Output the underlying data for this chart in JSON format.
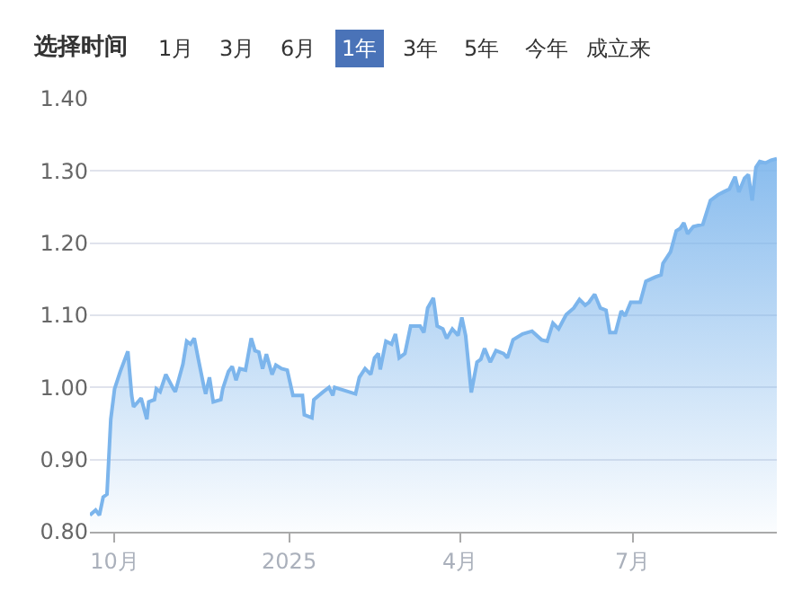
{
  "chart_data": {
    "type": "area",
    "title": "选择时间",
    "annotations": [
      "1月",
      "3月",
      "6月",
      "1年",
      "3年",
      "5年",
      "今年",
      "成立来"
    ],
    "x": [
      "2024-09-18",
      "2024-09-21",
      "2024-09-23",
      "2024-09-25",
      "2024-09-27",
      "2024-09-29",
      "2024-10-01",
      "2024-10-04",
      "2024-10-08",
      "2024-10-10",
      "2024-10-11",
      "2024-10-15",
      "2024-10-18",
      "2024-10-19",
      "2024-10-22",
      "2024-10-23",
      "2024-10-25",
      "2024-10-28",
      "2024-11-01",
      "2024-11-02",
      "2024-11-06",
      "2024-11-08",
      "2024-11-10",
      "2024-11-12",
      "2024-11-14",
      "2024-11-17",
      "2024-11-18",
      "2024-11-20",
      "2024-11-22",
      "2024-11-26",
      "2024-11-27",
      "2024-11-30",
      "2024-12-02",
      "2024-12-04",
      "2024-12-06",
      "2024-12-09",
      "2024-12-12",
      "2024-12-14",
      "2024-12-16",
      "2024-12-18",
      "2024-12-20",
      "2024-12-23",
      "2024-12-25",
      "2024-12-28",
      "2024-12-31",
      "2025-01-03",
      "2025-01-08",
      "2025-01-09",
      "2025-01-13",
      "2025-01-14",
      "2025-01-19",
      "2025-01-22",
      "2025-01-24",
      "2025-01-25",
      "2025-02-05",
      "2025-02-07",
      "2025-02-10",
      "2025-02-13",
      "2025-02-15",
      "2025-02-17",
      "2025-02-18",
      "2025-02-21",
      "2025-02-24",
      "2025-02-26",
      "2025-02-28",
      "2025-03-03",
      "2025-03-06",
      "2025-03-11",
      "2025-03-13",
      "2025-03-15",
      "2025-03-18",
      "2025-03-20",
      "2025-03-23",
      "2025-03-25",
      "2025-03-28",
      "2025-03-31",
      "2025-04-02",
      "2025-04-04",
      "2025-04-07",
      "2025-04-10",
      "2025-04-12",
      "2025-04-14",
      "2025-04-17",
      "2025-04-20",
      "2025-04-24",
      "2025-04-26",
      "2025-04-29",
      "2025-05-04",
      "2025-05-09",
      "2025-05-14",
      "2025-05-17",
      "2025-05-20",
      "2025-05-23",
      "2025-05-27",
      "2025-05-31",
      "2025-06-03",
      "2025-06-06",
      "2025-06-08",
      "2025-06-11",
      "2025-06-14",
      "2025-06-17",
      "2025-06-19",
      "2025-06-22",
      "2025-06-25",
      "2025-06-27",
      "2025-06-30",
      "2025-07-05",
      "2025-07-08",
      "2025-07-13",
      "2025-07-16",
      "2025-07-17",
      "2025-07-21",
      "2025-07-24",
      "2025-07-26",
      "2025-07-28",
      "2025-07-30",
      "2025-08-02",
      "2025-08-07",
      "2025-08-11",
      "2025-08-15",
      "2025-08-18",
      "2025-08-21",
      "2025-08-24",
      "2025-08-26",
      "2025-08-29",
      "2025-08-31",
      "2025-09-02",
      "2025-09-04",
      "2025-09-06",
      "2025-09-09",
      "2025-09-12",
      "2025-09-15"
    ],
    "series": [
      {
        "color": "#7cb5ec",
        "values": [
          0.823,
          0.83,
          0.823,
          0.848,
          0.852,
          0.956,
          0.998,
          1.022,
          1.05,
          0.989,
          0.973,
          0.985,
          0.956,
          0.98,
          0.983,
          0.998,
          0.994,
          1.018,
          0.998,
          0.994,
          1.032,
          1.064,
          1.06,
          1.068,
          1.041,
          1.002,
          0.991,
          1.014,
          0.98,
          0.983,
          0.998,
          1.022,
          1.029,
          1.01,
          1.026,
          1.024,
          1.068,
          1.051,
          1.049,
          1.026,
          1.046,
          1.018,
          1.031,
          1.026,
          1.024,
          0.989,
          0.989,
          0.962,
          0.958,
          0.983,
          0.994,
          1.0,
          0.989,
          1.0,
          0.991,
          1.014,
          1.026,
          1.018,
          1.041,
          1.047,
          1.025,
          1.064,
          1.06,
          1.074,
          1.041,
          1.047,
          1.085,
          1.085,
          1.076,
          1.11,
          1.124,
          1.085,
          1.081,
          1.068,
          1.081,
          1.072,
          1.097,
          1.072,
          0.993,
          1.035,
          1.039,
          1.054,
          1.035,
          1.051,
          1.047,
          1.041,
          1.066,
          1.074,
          1.078,
          1.066,
          1.064,
          1.089,
          1.081,
          1.101,
          1.11,
          1.122,
          1.114,
          1.118,
          1.129,
          1.11,
          1.107,
          1.076,
          1.076,
          1.106,
          1.099,
          1.118,
          1.118,
          1.147,
          1.153,
          1.156,
          1.172,
          1.188,
          1.217,
          1.22,
          1.228,
          1.213,
          1.223,
          1.226,
          1.259,
          1.267,
          1.271,
          1.275,
          1.292,
          1.271,
          1.29,
          1.295,
          1.259,
          1.305,
          1.313,
          1.311,
          1.315,
          1.317
        ]
      }
    ],
    "xlim": [
      "2024-09-18",
      "2025-09-15"
    ],
    "xticks": [
      {
        "value": "2024-10-01",
        "label": "10月"
      },
      {
        "value": "2025-01-01",
        "label": "2025"
      },
      {
        "value": "2025-04-01",
        "label": "4月"
      },
      {
        "value": "2025-07-01",
        "label": "7月"
      }
    ],
    "ylim": [
      0.8,
      1.4
    ],
    "yticks": [
      {
        "value": 0.8,
        "label": "0.80"
      },
      {
        "value": 0.9,
        "label": "0.90"
      },
      {
        "value": 1.0,
        "label": "1.00"
      },
      {
        "value": 1.1,
        "label": "1.10"
      },
      {
        "value": 1.2,
        "label": "1.20"
      },
      {
        "value": 1.3,
        "label": "1.30"
      },
      {
        "value": 1.4,
        "label": "1.40"
      }
    ],
    "grid": "y",
    "marker": "none",
    "line_style": "solid"
  }
}
